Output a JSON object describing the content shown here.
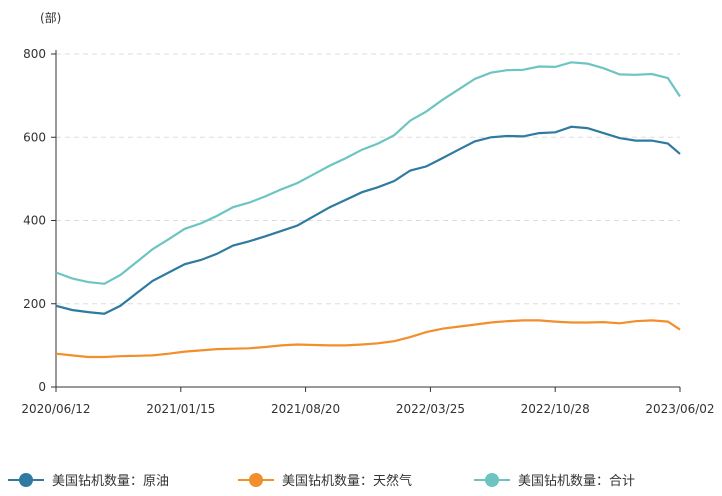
{
  "chart_data": {
    "type": "line",
    "y_label": "(部)",
    "x": [
      "2020/06/12",
      "2020/07/10",
      "2020/08/07",
      "2020/09/04",
      "2020/10/02",
      "2020/10/30",
      "2020/11/27",
      "2020/12/25",
      "2021/01/22",
      "2021/02/19",
      "2021/03/19",
      "2021/04/16",
      "2021/05/14",
      "2021/06/11",
      "2021/07/09",
      "2021/08/06",
      "2021/09/03",
      "2021/10/01",
      "2021/10/29",
      "2021/11/26",
      "2021/12/24",
      "2022/01/21",
      "2022/02/18",
      "2022/03/18",
      "2022/04/15",
      "2022/05/13",
      "2022/06/10",
      "2022/07/08",
      "2022/08/05",
      "2022/09/02",
      "2022/09/30",
      "2022/10/28",
      "2022/11/25",
      "2022/12/23",
      "2023/01/20",
      "2023/02/17",
      "2023/03/17",
      "2023/04/14",
      "2023/05/12",
      "2023/06/02"
    ],
    "series": [
      {
        "name": "美国钻机数量：原油",
        "color": "#2f7aa1",
        "values": [
          195,
          185,
          180,
          176,
          195,
          225,
          255,
          275,
          295,
          305,
          320,
          340,
          350,
          362,
          375,
          388,
          410,
          432,
          450,
          468,
          480,
          495,
          520,
          530,
          550,
          570,
          590,
          600,
          603,
          602,
          610,
          612,
          625,
          622,
          610,
          598,
          592,
          592,
          585,
          560
        ]
      },
      {
        "name": "美国钻机数量：天然气",
        "color": "#f28e2b",
        "values": [
          80,
          76,
          72,
          72,
          74,
          75,
          76,
          80,
          85,
          88,
          91,
          92,
          93,
          96,
          100,
          102,
          101,
          100,
          100,
          102,
          105,
          110,
          120,
          132,
          140,
          145,
          150,
          155,
          158,
          160,
          160,
          157,
          155,
          155,
          156,
          153,
          158,
          160,
          157,
          138
        ]
      },
      {
        "name": "美国钻机数量：合计",
        "color": "#6cc5c2",
        "values": [
          275,
          261,
          252,
          248,
          269,
          300,
          331,
          355,
          380,
          393,
          411,
          432,
          443,
          458,
          475,
          490,
          511,
          532,
          550,
          570,
          585,
          605,
          640,
          662,
          690,
          715,
          740,
          755,
          761,
          762,
          770,
          769,
          780,
          777,
          766,
          751,
          750,
          752,
          742,
          698
        ]
      }
    ],
    "xlim": [
      "2020/06/12",
      "2023/06/02"
    ],
    "xticks": [
      "2020/06/12",
      "2021/01/15",
      "2021/08/20",
      "2022/03/25",
      "2022/10/28",
      "2023/06/02"
    ],
    "ylim": [
      0,
      800
    ],
    "yticks": [
      0,
      200,
      400,
      600,
      800
    ],
    "grid": true
  }
}
